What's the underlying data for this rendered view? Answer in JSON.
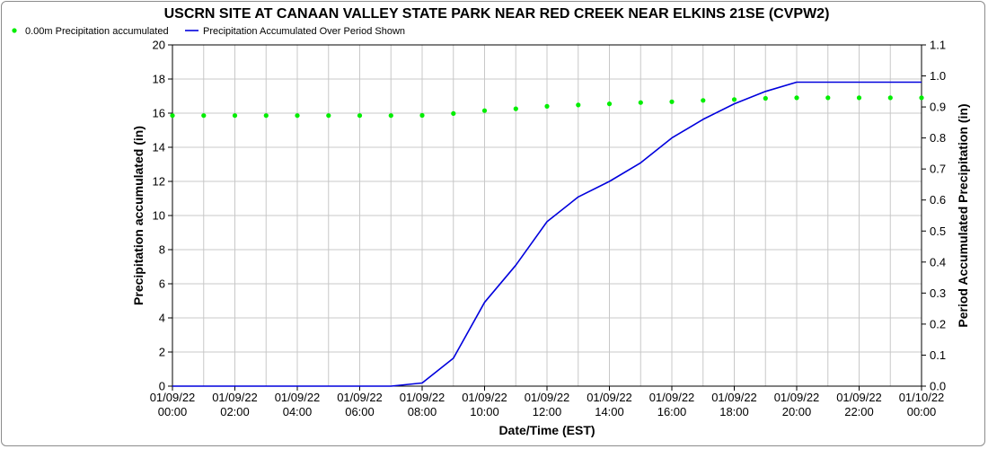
{
  "chart_data": {
    "type": "line",
    "title": "USCRN SITE AT CANAAN VALLEY STATE PARK NEAR RED CREEK NEAR ELKINS 21SE (CVPW2)",
    "xlabel": "Date/Time (EST)",
    "ylabel_left": "Precipitation accumulated (in)",
    "ylabel_right": "Period Accumulated Precipitation (in)",
    "ylim_left": [
      0,
      20
    ],
    "ylim_right": [
      0,
      1.1
    ],
    "xlim_hours": [
      0,
      24
    ],
    "grid": true,
    "legend_position": "top-left",
    "yticks_left": [
      "0",
      "2",
      "4",
      "6",
      "8",
      "10",
      "12",
      "14",
      "16",
      "18",
      "20"
    ],
    "yticks_right": [
      "0.0",
      "0.1",
      "0.2",
      "0.3",
      "0.4",
      "0.5",
      "0.6",
      "0.7",
      "0.8",
      "0.9",
      "1.0",
      "1.1"
    ],
    "xticks": [
      {
        "date": "01/09/22",
        "time": "00:00"
      },
      {
        "date": "01/09/22",
        "time": "02:00"
      },
      {
        "date": "01/09/22",
        "time": "04:00"
      },
      {
        "date": "01/09/22",
        "time": "06:00"
      },
      {
        "date": "01/09/22",
        "time": "08:00"
      },
      {
        "date": "01/09/22",
        "time": "10:00"
      },
      {
        "date": "01/09/22",
        "time": "12:00"
      },
      {
        "date": "01/09/22",
        "time": "14:00"
      },
      {
        "date": "01/09/22",
        "time": "16:00"
      },
      {
        "date": "01/09/22",
        "time": "18:00"
      },
      {
        "date": "01/09/22",
        "time": "20:00"
      },
      {
        "date": "01/09/22",
        "time": "22:00"
      },
      {
        "date": "01/10/22",
        "time": "00:00"
      }
    ],
    "series": [
      {
        "name": "0.00m Precipitation accumulated",
        "style": "points",
        "axis": "left",
        "color": "#00ee00",
        "x": [
          "00:00",
          "01:00",
          "02:00",
          "03:00",
          "04:00",
          "05:00",
          "06:00",
          "07:00",
          "08:00",
          "09:00",
          "10:00",
          "11:00",
          "12:00",
          "13:00",
          "14:00",
          "15:00",
          "16:00",
          "17:00",
          "18:00",
          "19:00",
          "20:00",
          "21:00",
          "22:00",
          "23:00",
          "00:00"
        ],
        "x_hours": [
          0,
          1,
          2,
          3,
          4,
          5,
          6,
          7,
          8,
          9,
          10,
          11,
          12,
          13,
          14,
          15,
          16,
          17,
          18,
          19,
          20,
          21,
          22,
          23,
          24
        ],
        "values": [
          15.86,
          15.86,
          15.86,
          15.86,
          15.86,
          15.86,
          15.86,
          15.86,
          15.87,
          15.98,
          16.15,
          16.26,
          16.4,
          16.48,
          16.55,
          16.62,
          16.67,
          16.75,
          16.8,
          16.87,
          16.9,
          16.9,
          16.9,
          16.9,
          16.9
        ]
      },
      {
        "name": "Precipitation Accumulated Over Period Shown",
        "style": "line",
        "axis": "right",
        "color": "#0000dd",
        "x": [
          "00:00",
          "07:00",
          "08:00",
          "09:00",
          "10:00",
          "11:00",
          "12:00",
          "13:00",
          "14:00",
          "15:00",
          "16:00",
          "17:00",
          "18:00",
          "19:00",
          "20:00",
          "21:00",
          "22:00",
          "23:00",
          "00:00"
        ],
        "x_hours": [
          0,
          7,
          8,
          9,
          10,
          11,
          12,
          13,
          14,
          15,
          16,
          17,
          18,
          19,
          20,
          21,
          22,
          23,
          24
        ],
        "values": [
          0.0,
          0.0,
          0.01,
          0.09,
          0.27,
          0.39,
          0.53,
          0.61,
          0.66,
          0.72,
          0.8,
          0.86,
          0.91,
          0.95,
          0.98,
          0.98,
          0.98,
          0.98,
          0.98
        ]
      }
    ]
  }
}
